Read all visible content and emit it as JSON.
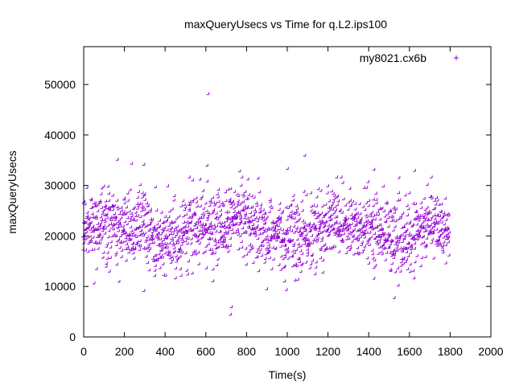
{
  "chart_data": {
    "type": "scatter",
    "title": "maxQueryUsecs vs Time for q.L2.ips100",
    "xlabel": "Time(s)",
    "ylabel": "maxQueryUsecs",
    "xlim": [
      0,
      2000
    ],
    "ylim": [
      0,
      57500
    ],
    "xticks": [
      0,
      200,
      400,
      600,
      800,
      1000,
      1200,
      1400,
      1600,
      1800,
      2000
    ],
    "yticks": [
      0,
      10000,
      20000,
      30000,
      40000,
      50000
    ],
    "grid": false,
    "legend": "top-right",
    "marker": "plus",
    "color": "#9400d3",
    "series": [
      {
        "name": "my8021.cx6b",
        "x_range": [
          0,
          1800
        ],
        "sampling_interval": 1,
        "typical_band": [
          15000,
          27000
        ],
        "notable_points": [
          [
            615,
            48000
          ],
          [
            1090,
            35800
          ],
          [
            170,
            35000
          ],
          [
            1005,
            33200
          ],
          [
            240,
            34200
          ],
          [
            300,
            34000
          ],
          [
            610,
            33800
          ],
          [
            1630,
            32800
          ],
          [
            770,
            32700
          ],
          [
            1430,
            33000
          ],
          [
            730,
            5800
          ],
          [
            725,
            4300
          ],
          [
            1530,
            7600
          ],
          [
            55,
            10500
          ],
          [
            1000,
            9200
          ],
          [
            300,
            9000
          ]
        ]
      }
    ]
  }
}
